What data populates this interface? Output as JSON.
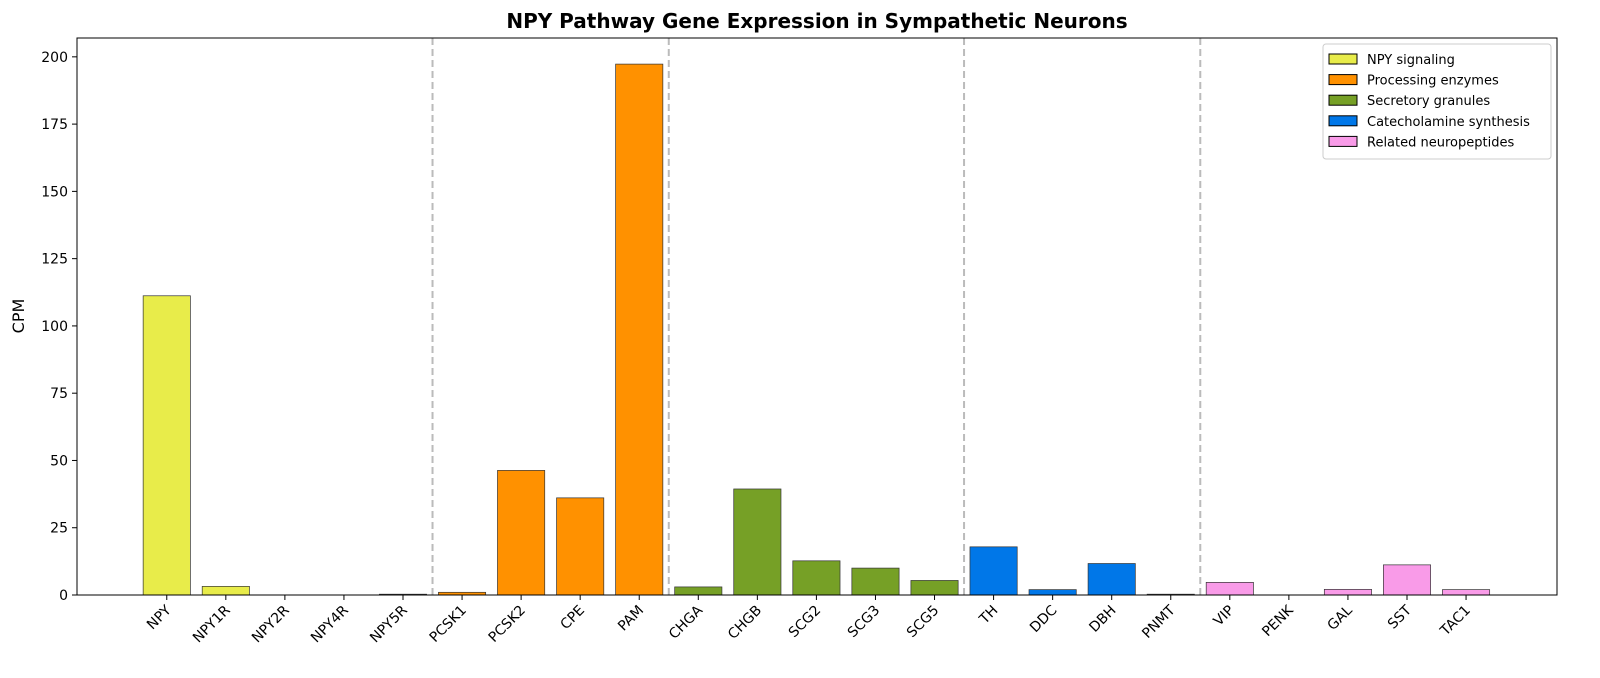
{
  "chart_data": {
    "type": "bar",
    "title": "NPY Pathway Gene Expression in Sympathetic Neurons",
    "y_label": "CPM",
    "categories": [
      "NPY",
      "NPY1R",
      "NPY2R",
      "NPY4R",
      "NPY5R",
      "PCSK1",
      "PCSK2",
      "CPE",
      "PAM",
      "CHGA",
      "CHGB",
      "SCG2",
      "SCG3",
      "SCG5",
      "TH",
      "DDC",
      "DBH",
      "PNMT",
      "VIP",
      "PENK",
      "GAL",
      "SST",
      "TAC1"
    ],
    "series": [
      {
        "name": "NPY signaling",
        "color": "#e8ec4a",
        "values": [
          111.2,
          3.2,
          0,
          0,
          0.3,
          null,
          null,
          null,
          null,
          null,
          null,
          null,
          null,
          null,
          null,
          null,
          null,
          null,
          null,
          null,
          null,
          null,
          null
        ]
      },
      {
        "name": "Processing enzymes",
        "color": "#ff9100",
        "values": [
          null,
          null,
          null,
          null,
          null,
          1.0,
          46.3,
          36.1,
          197.3,
          null,
          null,
          null,
          null,
          null,
          null,
          null,
          null,
          null,
          null,
          null,
          null,
          null,
          null
        ]
      },
      {
        "name": "Secretory granules",
        "color": "#76a026",
        "values": [
          null,
          null,
          null,
          null,
          null,
          null,
          null,
          null,
          null,
          3.0,
          39.4,
          12.7,
          10.0,
          5.4,
          null,
          null,
          null,
          null,
          null,
          null,
          null,
          null,
          null
        ]
      },
      {
        "name": "Catecholamine synthesis",
        "color": "#0077e8",
        "values": [
          null,
          null,
          null,
          null,
          null,
          null,
          null,
          null,
          null,
          null,
          null,
          null,
          null,
          null,
          17.9,
          2.0,
          11.7,
          0.3,
          null,
          null,
          null,
          null,
          null
        ]
      },
      {
        "name": "Related neuropeptides",
        "color": "#f99be8",
        "values": [
          null,
          null,
          null,
          null,
          null,
          null,
          null,
          null,
          null,
          null,
          null,
          null,
          null,
          null,
          null,
          null,
          null,
          null,
          4.7,
          0,
          2.1,
          11.2,
          2.0
        ]
      }
    ],
    "ylim": [
      0,
      207
    ],
    "yticks": [
      0,
      25,
      50,
      75,
      100,
      125,
      150,
      175,
      200
    ],
    "legend": "upper right",
    "group_dividers": true
  }
}
